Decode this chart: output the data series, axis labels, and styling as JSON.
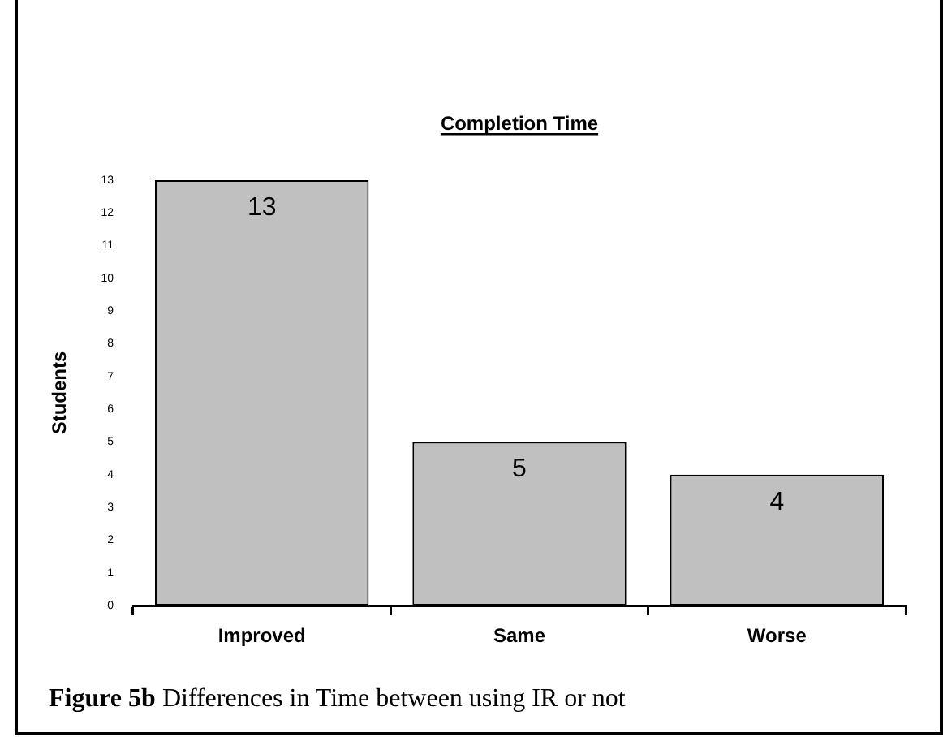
{
  "chart_data": {
    "type": "bar",
    "title": "Completion Time",
    "ylabel": "Students",
    "categories": [
      "Improved",
      "Same",
      "Worse"
    ],
    "values": [
      13,
      5,
      4
    ],
    "color": "#c0c0c0",
    "ylim": [
      0,
      13
    ],
    "yticks": [
      0,
      1,
      2,
      3,
      4,
      5,
      6,
      7,
      8,
      9,
      10,
      11,
      12,
      13
    ],
    "grid": false,
    "legend": false,
    "data_labels": true,
    "annotations": [
      "Figure 5b Differences in Time between using IR or not"
    ]
  }
}
